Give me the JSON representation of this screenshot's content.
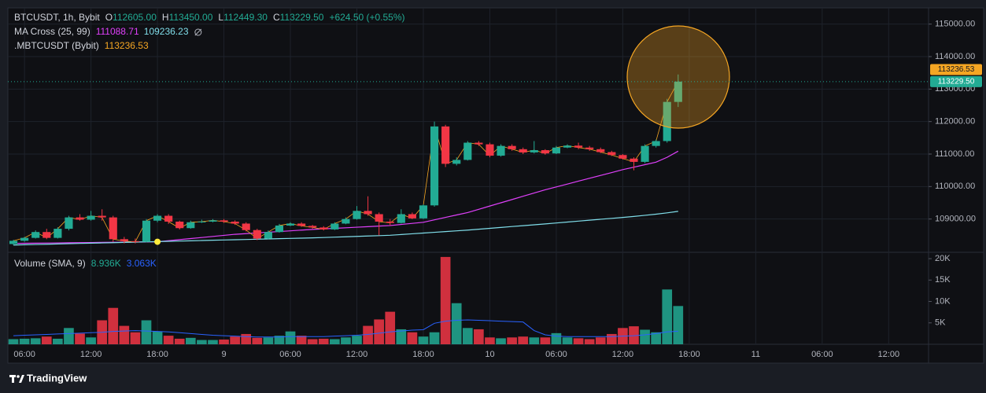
{
  "chart_data": [
    {
      "type": "candlestick",
      "title": "BTCUSDT, 1h, Bybit",
      "ohlc": [
        {
          "label": "O",
          "value": "112605.00"
        },
        {
          "label": "H",
          "value": "113450.00"
        },
        {
          "label": "L",
          "value": "112449.30"
        },
        {
          "label": "C",
          "value": "113229.50"
        }
      ],
      "change": "+624.50 (+0.55%)",
      "x": [
        5,
        6,
        7,
        8,
        9,
        10,
        11,
        12,
        13,
        14,
        15,
        16,
        17,
        18,
        19,
        20,
        21,
        22,
        23,
        24,
        25,
        26,
        27,
        28,
        29,
        30,
        31,
        32,
        33,
        34,
        35,
        36,
        37,
        38,
        39,
        40,
        41,
        42,
        43,
        44,
        45,
        46,
        47,
        48,
        49,
        50,
        51,
        52,
        53,
        54,
        55,
        56,
        57,
        58,
        59,
        60,
        61,
        62,
        63,
        64,
        65
      ],
      "open": [
        108230,
        108330,
        108420,
        108600,
        108420,
        108700,
        109050,
        108980,
        109100,
        109050,
        108380,
        108320,
        108300,
        108950,
        109100,
        108920,
        108720,
        108900,
        108920,
        108960,
        108920,
        108860,
        108660,
        108400,
        108600,
        108800,
        108860,
        108790,
        108740,
        108680,
        108860,
        109000,
        109250,
        109150,
        108920,
        108880,
        109150,
        109020,
        109420,
        111850,
        110700,
        110820,
        111350,
        111300,
        110950,
        111250,
        111150,
        111050,
        111120,
        111020,
        111200,
        111260,
        111200,
        111150,
        111060,
        110970,
        110860,
        110760,
        111250,
        111400,
        112605
      ],
      "high": [
        108360,
        108450,
        108650,
        108700,
        108750,
        109100,
        109150,
        109250,
        109300,
        109100,
        108450,
        108400,
        109000,
        109150,
        109150,
        108950,
        108950,
        108980,
        109000,
        109000,
        108960,
        108900,
        108700,
        108650,
        108850,
        108900,
        108900,
        108820,
        108780,
        108900,
        109050,
        109400,
        109700,
        109200,
        109000,
        109300,
        109200,
        109450,
        112000,
        111900,
        110900,
        111400,
        111400,
        111350,
        111300,
        111300,
        111200,
        111400,
        111150,
        111250,
        111300,
        111350,
        111250,
        111200,
        111100,
        111000,
        110900,
        111300,
        111450,
        112700,
        113450
      ],
      "low": [
        108200,
        108300,
        108400,
        108380,
        108400,
        108650,
        108950,
        108950,
        108950,
        108300,
        108250,
        108250,
        108280,
        108900,
        108850,
        108680,
        108700,
        108880,
        108900,
        108880,
        108820,
        108620,
        108350,
        108380,
        108580,
        108780,
        108760,
        108700,
        108650,
        108660,
        108840,
        108980,
        109100,
        108500,
        108800,
        108860,
        109000,
        109000,
        109380,
        110600,
        110650,
        110800,
        111250,
        110900,
        110920,
        111100,
        111000,
        111020,
        110980,
        111000,
        111180,
        111150,
        111100,
        111030,
        110940,
        110830,
        110500,
        110720,
        111200,
        111350,
        112449.3
      ],
      "close": [
        108330,
        108420,
        108600,
        108420,
        108700,
        109050,
        108980,
        109100,
        109050,
        108380,
        108320,
        108300,
        108950,
        109100,
        108920,
        108720,
        108900,
        108920,
        108960,
        108920,
        108860,
        108660,
        108400,
        108600,
        108800,
        108860,
        108790,
        108740,
        108680,
        108860,
        109000,
        109250,
        109150,
        108920,
        108880,
        109150,
        109020,
        109420,
        111850,
        110700,
        110820,
        111350,
        111300,
        110950,
        111250,
        111150,
        111050,
        111120,
        111020,
        111200,
        111260,
        111200,
        111150,
        111060,
        110970,
        110860,
        110760,
        111250,
        111400,
        112605,
        113229.5
      ],
      "up_color": "#22ab94",
      "down_color": "#f23645",
      "series": [
        {
          "name": "MA Cross (25, 99)",
          "lines": [
            {
              "color": "#e040fb",
              "values": [
                108250,
                108254,
                108258,
                108262,
                108265,
                108269,
                108273,
                108277,
                108281,
                108285,
                108288,
                108292,
                108296,
                108300,
                108333,
                108366,
                108399,
                108431,
                108464,
                108497,
                108530,
                108551,
                108573,
                108594,
                108616,
                108637,
                108659,
                108680,
                108697,
                108714,
                108731,
                108749,
                108766,
                108783,
                108800,
                108833,
                108867,
                108900,
                108975,
                109050,
                109125,
                109200,
                109300,
                109400,
                109500,
                109600,
                109700,
                109800,
                109900,
                109989,
                110077,
                110166,
                110254,
                110343,
                110431,
                110520,
                110597,
                110673,
                110750,
                110900,
                111088.71
              ]
            },
            {
              "color": "#80deea",
              "values": [
                108200,
                108208,
                108216,
                108224,
                108233,
                108241,
                108249,
                108257,
                108265,
                108273,
                108281,
                108290,
                108298,
                108306,
                108314,
                108322,
                108330,
                108338,
                108347,
                108355,
                108363,
                108371,
                108379,
                108387,
                108396,
                108404,
                108412,
                108420,
                108431,
                108443,
                108454,
                108466,
                108477,
                108489,
                108500,
                108523,
                108546,
                108569,
                108591,
                108614,
                108637,
                108660,
                108687,
                108714,
                108741,
                108769,
                108796,
                108823,
                108850,
                108879,
                108907,
                108936,
                108964,
                108993,
                109021,
                109050,
                109080,
                109115,
                109150,
                109190,
                109236.23
              ]
            }
          ]
        },
        {
          "name": ".MBTCUSDT (Bybit)",
          "color": "#f5a623",
          "values": [
            108330,
            108420,
            108600,
            108420,
            108700,
            109050,
            108980,
            109100,
            109050,
            108380,
            108320,
            108300,
            108950,
            109100,
            108920,
            108720,
            108900,
            108920,
            108960,
            108920,
            108860,
            108660,
            108400,
            108600,
            108800,
            108860,
            108790,
            108740,
            108680,
            108860,
            109000,
            109250,
            109150,
            108920,
            108880,
            109150,
            109020,
            109420,
            111850,
            110700,
            110820,
            111350,
            111300,
            110950,
            111250,
            111150,
            111050,
            111120,
            111020,
            111200,
            111260,
            111200,
            111150,
            111060,
            110970,
            110860,
            110760,
            111250,
            111400,
            112605,
            113236.53
          ]
        }
      ],
      "markers": [
        {
          "x": 18,
          "y": 108300,
          "color": "#ffeb3b"
        }
      ],
      "price_labels": [
        {
          "value": 113236.53,
          "label": "113236.53",
          "color": "#f5a623"
        },
        {
          "value": 113229.5,
          "label": "113229.50",
          "color": "#22ab94"
        }
      ],
      "xlim": [
        4.5,
        87.6
      ],
      "xticks": [
        {
          "value": 6,
          "label": "06:00"
        },
        {
          "value": 12,
          "label": "12:00"
        },
        {
          "value": 18,
          "label": "18:00"
        },
        {
          "value": 24,
          "label": "9"
        },
        {
          "value": 30,
          "label": "06:00"
        },
        {
          "value": 36,
          "label": "12:00"
        },
        {
          "value": 42,
          "label": "18:00"
        },
        {
          "value": 48,
          "label": "10"
        },
        {
          "value": 54,
          "label": "06:00"
        },
        {
          "value": 60,
          "label": "12:00"
        },
        {
          "value": 66,
          "label": "18:00"
        },
        {
          "value": 72,
          "label": "11"
        },
        {
          "value": 78,
          "label": "06:00"
        },
        {
          "value": 84,
          "label": "12:00"
        }
      ],
      "ylim": [
        108000,
        115500
      ],
      "yticks": [
        {
          "value": 109000,
          "label": "109000.00"
        },
        {
          "value": 110000,
          "label": "110000.00"
        },
        {
          "value": 111000,
          "label": "111000.00"
        },
        {
          "value": 112000,
          "label": "112000.00"
        },
        {
          "value": 113000,
          "label": "113000.00"
        },
        {
          "value": 114000,
          "label": "114000.00"
        },
        {
          "value": 115000,
          "label": "115000.00"
        }
      ],
      "grid": true
    },
    {
      "type": "bar",
      "title": "Volume (SMA, 9)",
      "legend_labels": [
        "8.936K",
        "3.063K"
      ],
      "values": [
        1.2,
        1.3,
        1.4,
        1.8,
        1.3,
        3.8,
        2.5,
        1.6,
        5.6,
        8.5,
        4.3,
        2.8,
        5.6,
        3.0,
        2.0,
        1.3,
        1.5,
        1.0,
        1.0,
        1.1,
        1.8,
        2.4,
        1.5,
        1.6,
        2.0,
        3.0,
        2.0,
        1.2,
        1.3,
        1.2,
        1.6,
        2.0,
        4.3,
        5.8,
        7.6,
        3.5,
        2.8,
        1.8,
        2.8,
        20.4,
        9.6,
        3.8,
        3.5,
        1.6,
        1.4,
        1.6,
        1.8,
        1.6,
        1.6,
        2.6,
        1.6,
        1.4,
        1.2,
        1.6,
        2.4,
        3.8,
        4.2,
        3.4,
        2.8,
        12.8,
        8.936
      ],
      "sma": {
        "color": "#2962ff",
        "values": [
          2.0,
          2.1,
          2.2,
          2.3,
          2.4,
          2.5,
          2.6,
          2.7,
          2.8,
          3.0,
          3.1,
          3.2,
          3.1,
          3.0,
          2.9,
          2.7,
          2.5,
          2.3,
          2.1,
          2.0,
          1.9,
          1.8,
          1.7,
          1.7,
          1.7,
          1.8,
          1.8,
          1.8,
          1.8,
          1.9,
          2.0,
          2.1,
          2.3,
          2.6,
          2.9,
          3.1,
          3.3,
          3.4,
          4.9,
          5.4,
          5.6,
          5.7,
          5.6,
          5.5,
          5.4,
          5.3,
          5.2,
          3.2,
          2.2,
          1.9,
          1.8,
          1.8,
          1.8,
          1.8,
          1.8,
          1.9,
          2.0,
          2.2,
          2.5,
          2.9,
          3.063
        ]
      },
      "ylim": [
        0,
        21.3
      ],
      "yticks": [
        {
          "value": 5,
          "label": "5K"
        },
        {
          "value": 10,
          "label": "10K"
        },
        {
          "value": 15,
          "label": "15K"
        },
        {
          "value": 20,
          "label": "20K"
        }
      ],
      "grid": false
    }
  ],
  "footer": {
    "brand": "TradingView"
  }
}
